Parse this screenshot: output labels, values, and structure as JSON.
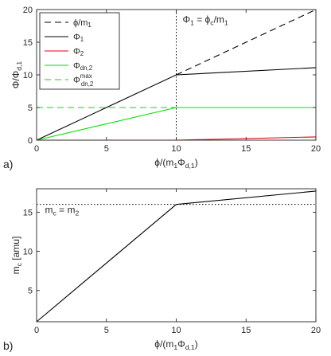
{
  "chart_data": [
    {
      "panel": "a)",
      "type": "line",
      "xlabel": [
        "ϕ/(m",
        "1",
        "Φ",
        "d,1",
        ")"
      ],
      "ylabel": [
        "Φ/Φ",
        "d,1"
      ],
      "xlim": [
        0,
        20
      ],
      "ylim": [
        0,
        20
      ],
      "xticks": [
        0,
        5,
        10,
        15,
        20
      ],
      "yticks": [
        0,
        5,
        10,
        15,
        20
      ],
      "legend_position": "top-left",
      "annotation": [
        "Φ",
        "1",
        " = ϕ",
        "c",
        "/m",
        "1"
      ],
      "annotation_x": 10,
      "annotation_y": 18,
      "vline_x": 10,
      "series": [
        {
          "label": [
            "ϕ/m",
            "1",
            ""
          ],
          "color": "#000000",
          "dash": "dashed",
          "x": [
            10,
            20
          ],
          "y": [
            10,
            20
          ]
        },
        {
          "label": [
            "Φ",
            "1",
            ""
          ],
          "color": "#000000",
          "dash": "solid",
          "x": [
            0,
            10,
            20
          ],
          "y": [
            0,
            10,
            11.1
          ]
        },
        {
          "label": [
            "Φ",
            "2",
            ""
          ],
          "color": "#e0000f",
          "dash": "solid",
          "x": [
            0,
            10,
            20
          ],
          "y": [
            0,
            0,
            0.5
          ]
        },
        {
          "label": [
            "Φ",
            "dn,2",
            ""
          ],
          "color": "#00e000",
          "dash": "solid",
          "x": [
            0,
            10,
            20
          ],
          "y": [
            0,
            5,
            5
          ]
        },
        {
          "label": [
            "Φ",
            "dn,2",
            "max"
          ],
          "color": "#00e000",
          "dash": "dashed",
          "x": [
            0,
            20
          ],
          "y": [
            5,
            5
          ]
        }
      ]
    },
    {
      "panel": "b)",
      "type": "line",
      "xlabel": [
        "ϕ/(m",
        "1",
        "Φ",
        "d,1",
        ")"
      ],
      "ylabel": [
        "m",
        "c",
        " [amu]"
      ],
      "xlim": [
        0,
        20
      ],
      "ylim": [
        1,
        18
      ],
      "xticks": [
        0,
        5,
        10,
        15,
        20
      ],
      "yticks": [
        5,
        10,
        15
      ],
      "annotation": [
        "m",
        "c",
        " = m",
        "2"
      ],
      "annotation_x": 0.6,
      "annotation_y": 14.9,
      "hline_y": 16,
      "series": [
        {
          "label": [
            "m",
            "c",
            ""
          ],
          "color": "#000000",
          "dash": "solid",
          "x": [
            0,
            10,
            20
          ],
          "y": [
            1,
            16,
            17.7
          ]
        }
      ]
    }
  ]
}
